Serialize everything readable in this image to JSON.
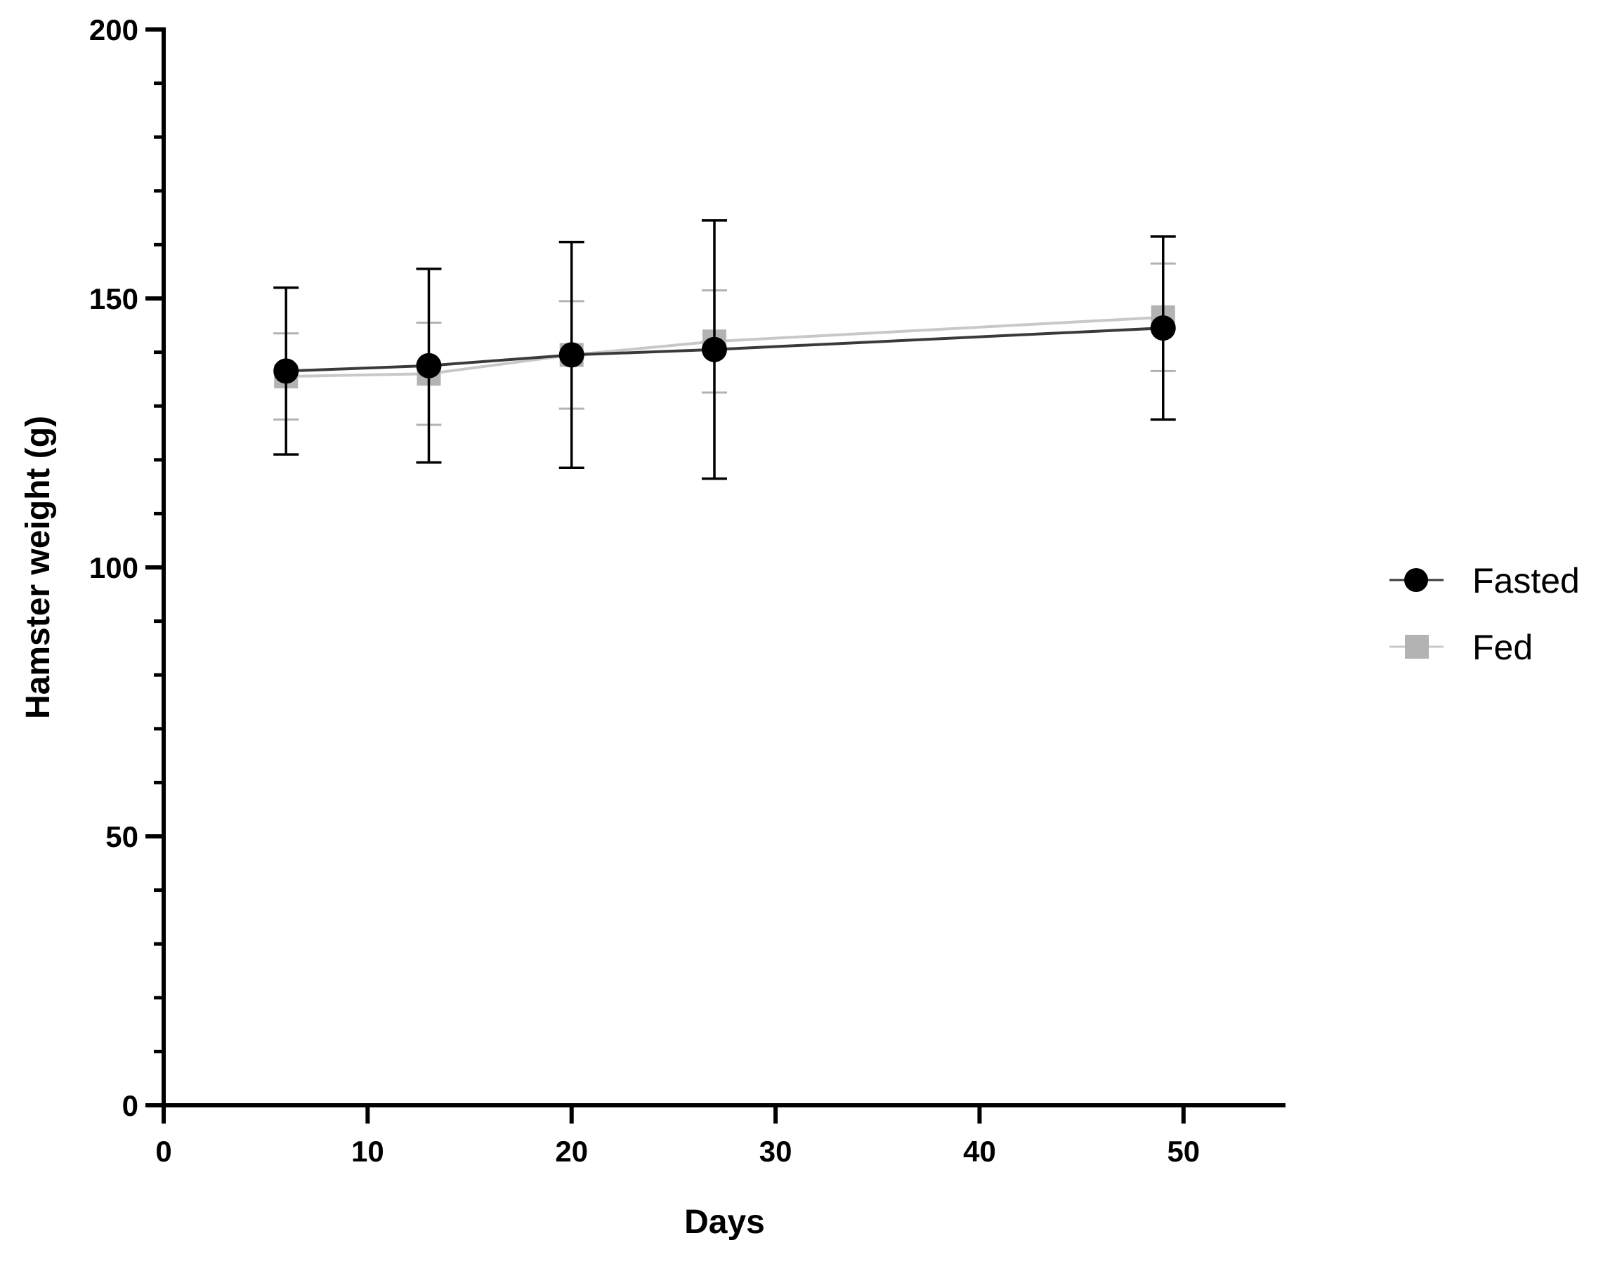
{
  "chart_data": {
    "type": "line",
    "xlabel": "Days",
    "ylabel": "Hamster weight (g)",
    "xlim": [
      0,
      55
    ],
    "ylim": [
      0,
      200
    ],
    "x_ticks": [
      0,
      10,
      20,
      30,
      40,
      50
    ],
    "y_ticks": [
      0,
      50,
      100,
      150,
      200
    ],
    "y_minor_step": 10,
    "grid": false,
    "legend_position": "right",
    "series": [
      {
        "name": "Fed",
        "color": "#b3b3b3",
        "marker": "square",
        "x": [
          6,
          13,
          20,
          27,
          49
        ],
        "y": [
          135.5,
          136,
          139.5,
          142,
          146.5
        ],
        "error": [
          8,
          9.5,
          10,
          9.5,
          10
        ]
      },
      {
        "name": "Fasted",
        "color": "#000000",
        "marker": "circle",
        "x": [
          6,
          13,
          20,
          27,
          49
        ],
        "y": [
          136.5,
          137.5,
          139.5,
          140.5,
          144.5
        ],
        "error": [
          15.5,
          18,
          21,
          24,
          17
        ]
      }
    ],
    "legend": [
      "Fasted",
      "Fed"
    ]
  }
}
